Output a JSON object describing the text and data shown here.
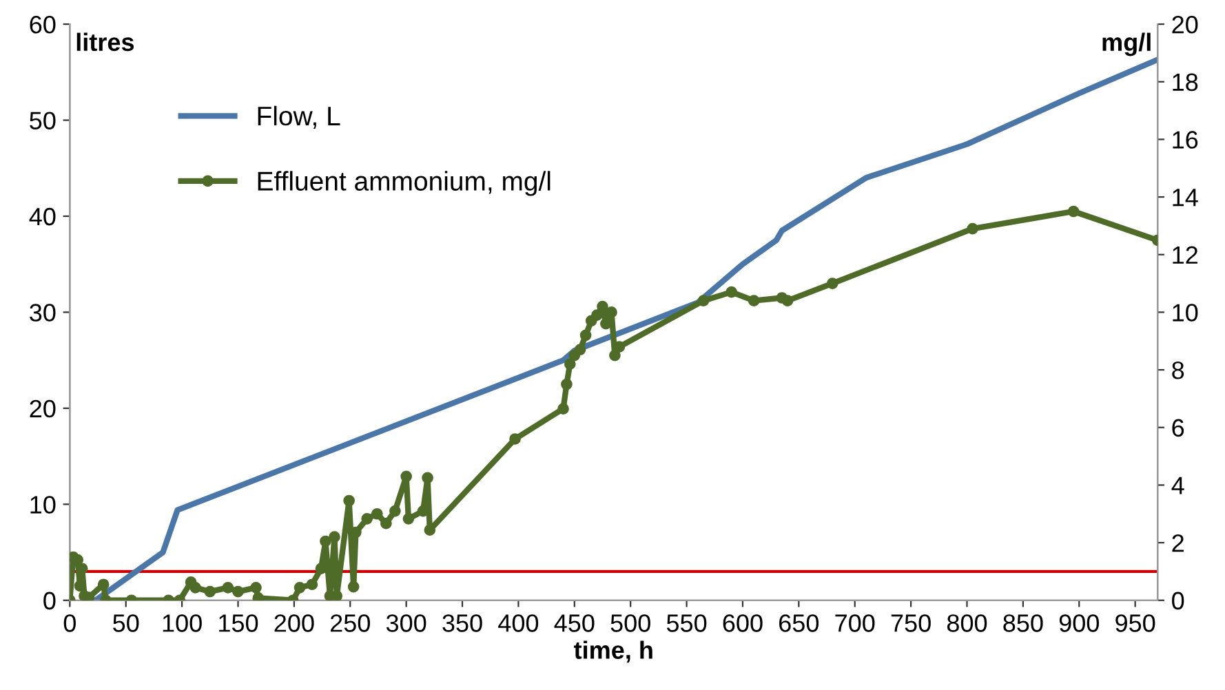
{
  "chart_data": {
    "type": "line",
    "xlabel": "time, h",
    "ylabel": "litres",
    "y2label": "mg/l",
    "xlim": [
      0,
      970
    ],
    "xticks": [
      0,
      50,
      100,
      150,
      200,
      250,
      300,
      350,
      400,
      450,
      500,
      550,
      600,
      650,
      700,
      750,
      800,
      850,
      900,
      950
    ],
    "ylim": [
      0,
      60
    ],
    "yticks": [
      0,
      10,
      20,
      30,
      40,
      50,
      60
    ],
    "y2lim": [
      0,
      20
    ],
    "y2ticks": [
      0,
      2,
      4,
      6,
      8,
      10,
      12,
      14,
      16,
      18,
      20
    ],
    "grid": false,
    "legend": "top left",
    "ref_lines": [
      {
        "axis": "y",
        "value": 3,
        "color": "#cc0000"
      }
    ],
    "series": [
      {
        "name": "Flow, L",
        "color": "#4a76a8",
        "marker": "none",
        "x": [
          23,
          83,
          96,
          440,
          450,
          560,
          600,
          630,
          635,
          710,
          800,
          900,
          970
        ],
        "values": [
          0,
          5,
          9.4,
          25,
          26,
          31,
          35,
          37.5,
          38.5,
          44,
          47.5,
          52.8,
          56.3
        ]
      },
      {
        "name": "Effluent ammonium, mg/l",
        "color": "#4f6b28",
        "marker": "circle",
        "axis": "y2",
        "x": [
          0,
          3,
          7,
          9,
          11,
          13,
          17,
          30,
          32,
          55,
          88,
          98,
          108,
          112,
          125,
          141,
          150,
          166,
          168,
          199,
          205,
          216,
          224,
          228,
          232,
          236,
          238,
          249,
          253,
          255,
          265,
          274,
          282,
          290,
          300,
          302,
          315,
          319,
          321,
          397,
          440,
          443,
          446,
          450,
          455,
          460,
          465,
          470,
          475,
          478,
          483,
          486,
          490,
          565,
          590,
          610,
          635,
          640,
          680,
          805,
          895,
          970
        ],
        "values": [
          0,
          1.5,
          1.4,
          0.5,
          1.1,
          0.15,
          0.1,
          0.55,
          0,
          0,
          0,
          0,
          0.63,
          0.44,
          0.3,
          0.44,
          0.3,
          0.44,
          0.08,
          0,
          0.44,
          0.55,
          1.1,
          2.05,
          0.15,
          2.2,
          0.15,
          3.46,
          0.47,
          2.36,
          2.83,
          3.0,
          2.67,
          3.1,
          4.3,
          2.83,
          3.1,
          4.25,
          2.44,
          5.6,
          6.65,
          7.5,
          8.2,
          8.5,
          8.7,
          9.2,
          9.7,
          9.9,
          10.2,
          9.6,
          10.0,
          8.5,
          8.8,
          10.4,
          10.7,
          10.4,
          10.5,
          10.4,
          11.0,
          12.9,
          13.5,
          12.5
        ]
      }
    ]
  }
}
